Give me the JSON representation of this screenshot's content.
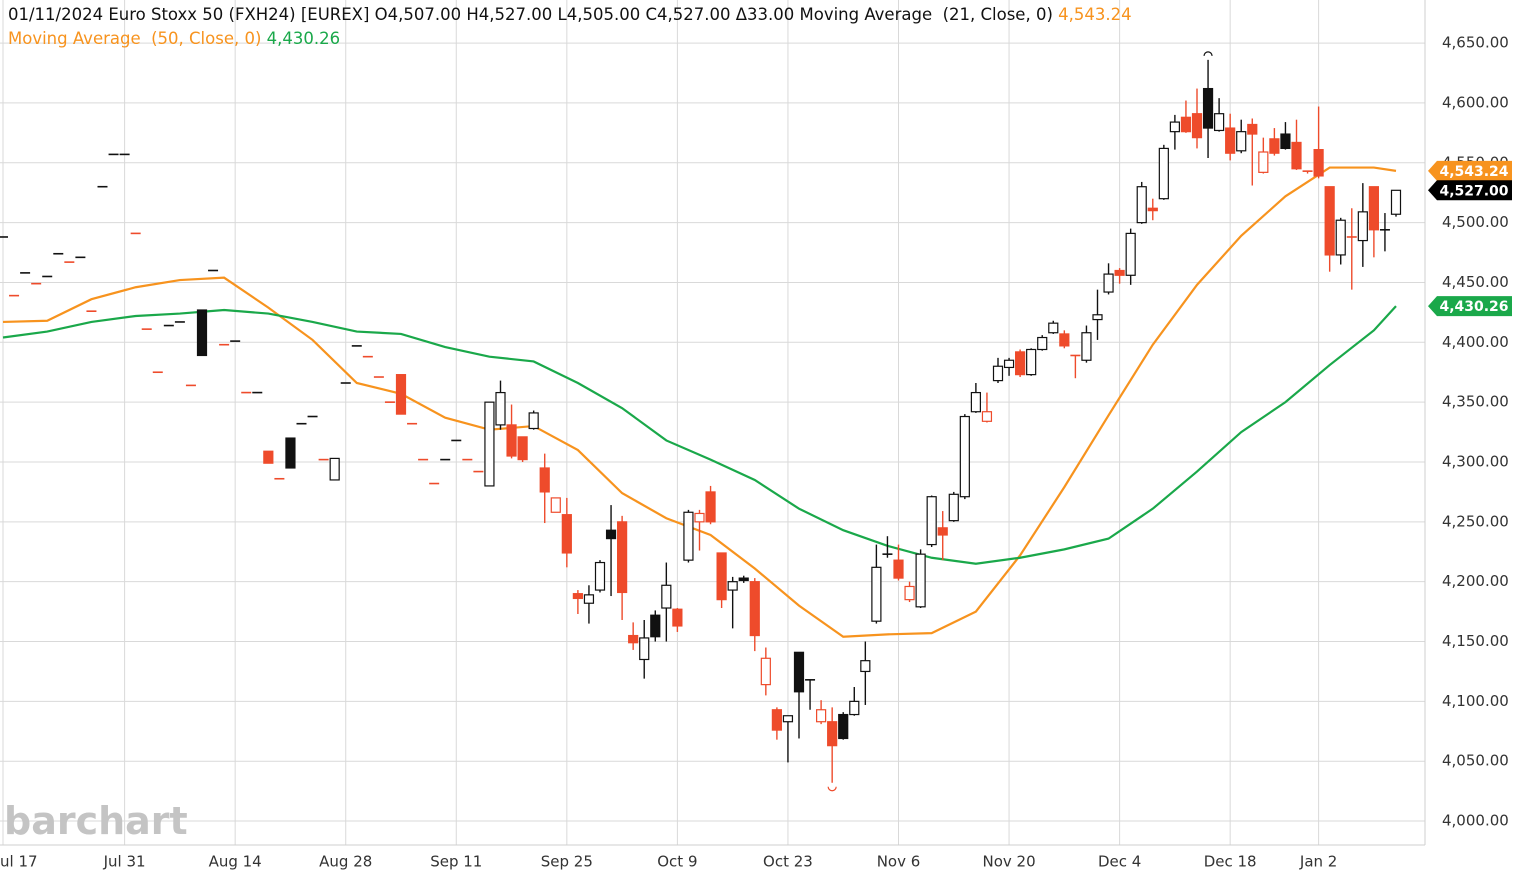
{
  "chart_data": {
    "type": "candlestick",
    "title": "01/11/2024 Euro Stoxx 50 (FXH24) [EUREX]",
    "quote_labels": [
      "O4,507.00",
      "H4,527.00",
      "L4,505.00",
      "C4,527.00",
      "Δ33.00"
    ],
    "last_price_label": "4,527.00",
    "watermark": "barchart",
    "colors": {
      "up": "#111111",
      "down": "#ee4b2b"
    },
    "categories": [
      "ul 17",
      null,
      null,
      null,
      null,
      null,
      null,
      null,
      null,
      null,
      null,
      "Jul 31",
      null,
      null,
      null,
      null,
      null,
      null,
      null,
      null,
      null,
      "Aug 14",
      null,
      null,
      null,
      null,
      null,
      null,
      null,
      null,
      null,
      "Aug 28",
      null,
      null,
      null,
      null,
      null,
      null,
      null,
      null,
      null,
      "Sep 11",
      null,
      null,
      null,
      null,
      null,
      null,
      null,
      null,
      null,
      "Sep 25",
      null,
      null,
      null,
      null,
      null,
      null,
      null,
      null,
      null,
      "Oct 9",
      null,
      null,
      null,
      null,
      null,
      null,
      null,
      null,
      null,
      "Oct 23",
      null,
      null,
      null,
      null,
      null,
      null,
      null,
      null,
      null,
      "Nov 6",
      null,
      null,
      null,
      null,
      null,
      null,
      null,
      null,
      null,
      "Nov 20",
      null,
      null,
      null,
      null,
      null,
      null,
      null,
      null,
      null,
      "Dec 4",
      null,
      null,
      null,
      null,
      null,
      null,
      null,
      null,
      null,
      "Dec 18",
      null,
      null,
      null,
      null,
      null,
      null,
      null,
      "Jan 2",
      null,
      null,
      null,
      null,
      null,
      null,
      null
    ],
    "open": [
      4488,
      4439,
      4458,
      4449,
      4455,
      4474,
      4467,
      4471,
      4426,
      4530,
      4557,
      4557,
      4491,
      4411,
      4375,
      4414,
      4417,
      4364,
      4427,
      4460,
      4398,
      4401,
      4358,
      4358,
      4309,
      4286,
      4320,
      4332,
      4338,
      4302,
      4285,
      4366,
      4397,
      4388,
      4371,
      4350,
      4373,
      4332,
      4302,
      4282,
      4302,
      4318,
      4302,
      4292,
      4280,
      4331,
      4331,
      4321,
      4328,
      4295,
      4258,
      4256,
      4190,
      4182,
      4193,
      4243,
      4250,
      4155,
      4135,
      4172,
      4178,
      4177,
      4218,
      4250,
      4275,
      4224,
      4193,
      4203,
      4200,
      4114,
      4093,
      4083,
      4141,
      4118,
      4083,
      4083,
      4089,
      4089,
      4125,
      4167,
      4223,
      4218,
      4185,
      4179,
      4231,
      4245,
      4251,
      4271,
      4342,
      4334,
      4368,
      4379,
      4392,
      4373,
      4394,
      4408,
      4407,
      4389,
      4385,
      4419,
      4442,
      4460,
      4456,
      4500,
      4512,
      4520,
      4576,
      4588,
      4591,
      4612,
      4577,
      4579,
      4560,
      4582,
      4542,
      4570,
      4574,
      4567,
      4543,
      4561,
      4530,
      4473,
      4488,
      4485,
      4530,
      4494,
      4507
    ],
    "high": [
      4488,
      4439,
      4458,
      4449,
      4455,
      4474,
      4467,
      4471,
      4426,
      4530,
      4557,
      4557,
      4491,
      4411,
      4375,
      4414,
      4417,
      4364,
      4427,
      4460,
      4398,
      4401,
      4358,
      4358,
      4309,
      4286,
      4320,
      4332,
      4338,
      4302,
      4303,
      4366,
      4397,
      4388,
      4371,
      4350,
      4373,
      4332,
      4302,
      4282,
      4302,
      4318,
      4302,
      4292,
      4350,
      4368,
      4348,
      4321,
      4343,
      4307,
      4270,
      4270,
      4193,
      4197,
      4218,
      4264,
      4255,
      4166,
      4168,
      4176,
      4216,
      4178,
      4260,
      4260,
      4280,
      4224,
      4204,
      4205,
      4203,
      4145,
      4095,
      4088,
      4141,
      4118,
      4101,
      4095,
      4091,
      4112,
      4150,
      4231,
      4238,
      4231,
      4200,
      4227,
      4272,
      4259,
      4275,
      4340,
      4366,
      4358,
      4387,
      4387,
      4394,
      4395,
      4406,
      4418,
      4410,
      4389,
      4414,
      4444,
      4466,
      4462,
      4495,
      4534,
      4520,
      4565,
      4590,
      4602,
      4612,
      4636,
      4604,
      4591,
      4586,
      4587,
      4571,
      4579,
      4584,
      4586,
      4543,
      4597,
      4530,
      4504,
      4512,
      4533,
      4530,
      4508,
      4527
    ],
    "low": [
      4488,
      4439,
      4458,
      4449,
      4455,
      4474,
      4467,
      4471,
      4426,
      4530,
      4557,
      4557,
      4491,
      4411,
      4375,
      4414,
      4417,
      4364,
      4389,
      4460,
      4398,
      4401,
      4358,
      4358,
      4299,
      4286,
      4295,
      4332,
      4338,
      4302,
      4285,
      4366,
      4397,
      4388,
      4371,
      4350,
      4340,
      4332,
      4302,
      4282,
      4302,
      4318,
      4302,
      4292,
      4280,
      4327,
      4303,
      4300,
      4327,
      4249,
      4258,
      4212,
      4173,
      4165,
      4191,
      4188,
      4168,
      4143,
      4119,
      4150,
      4150,
      4158,
      4216,
      4226,
      4248,
      4178,
      4161,
      4199,
      4142,
      4105,
      4068,
      4049,
      4069,
      4093,
      4081,
      4032,
      4068,
      4088,
      4097,
      4165,
      4220,
      4201,
      4183,
      4178,
      4229,
      4218,
      4250,
      4269,
      4341,
      4333,
      4366,
      4372,
      4371,
      4372,
      4393,
      4407,
      4395,
      4370,
      4383,
      4402,
      4440,
      4449,
      4448,
      4499,
      4502,
      4519,
      4561,
      4575,
      4562,
      4554,
      4576,
      4552,
      4558,
      4531,
      4541,
      4556,
      4561,
      4544,
      4541,
      4537,
      4459,
      4465,
      4444,
      4463,
      4471,
      4476,
      4505
    ],
    "close": [
      4488,
      4439,
      4458,
      4449,
      4455,
      4474,
      4467,
      4471,
      4426,
      4530,
      4557,
      4557,
      4491,
      4411,
      4375,
      4414,
      4417,
      4364,
      4389,
      4460,
      4398,
      4401,
      4358,
      4358,
      4299,
      4286,
      4295,
      4332,
      4338,
      4302,
      4303,
      4366,
      4397,
      4388,
      4371,
      4350,
      4340,
      4332,
      4302,
      4282,
      4302,
      4318,
      4302,
      4292,
      4350,
      4358,
      4305,
      4302,
      4341,
      4275,
      4270,
      4224,
      4186,
      4189,
      4216,
      4236,
      4191,
      4149,
      4153,
      4154,
      4197,
      4163,
      4258,
      4257,
      4250,
      4185,
      4200,
      4201,
      4155,
      4136,
      4076,
      4088,
      4108,
      4118,
      4093,
      4063,
      4069,
      4100,
      4134,
      4212,
      4223,
      4203,
      4196,
      4223,
      4271,
      4239,
      4273,
      4338,
      4358,
      4342,
      4380,
      4385,
      4373,
      4394,
      4404,
      4416,
      4397,
      4389,
      4408,
      4423,
      4457,
      4456,
      4491,
      4530,
      4510,
      4562,
      4584,
      4576,
      4571,
      4579,
      4591,
      4558,
      4576,
      4574,
      4559,
      4558,
      4562,
      4545,
      4543,
      4539,
      4473,
      4502,
      4488,
      4509,
      4494,
      4494,
      4527
    ],
    "overlays": [
      {
        "name": "Moving Average  (21, Close, 0)",
        "color": "#f7931e",
        "value_label": "4,543.24",
        "x": [
          0,
          4,
          8,
          12,
          16,
          20,
          24,
          28,
          32,
          36,
          40,
          44,
          48,
          52,
          56,
          60,
          64,
          68,
          72,
          76,
          80,
          84,
          88,
          92,
          96,
          100,
          104,
          108,
          112,
          116,
          120,
          124,
          126
        ],
        "values": [
          4417,
          4418,
          4436,
          4446,
          4452,
          4454,
          4429,
          4402,
          4366,
          4357,
          4337,
          4327,
          4330,
          4310,
          4274,
          4253,
          4239,
          4211,
          4180,
          4154,
          4156,
          4157,
          4175,
          4222,
          4279,
          4339,
          4398,
          4448,
          4489,
          4522,
          4546,
          4546,
          4543.24
        ]
      },
      {
        "name": "Moving Average  (50, Close, 0)",
        "color": "#1aa84a",
        "value_label": "4,430.26",
        "x": [
          0,
          4,
          8,
          12,
          16,
          20,
          24,
          28,
          32,
          36,
          40,
          44,
          48,
          52,
          56,
          60,
          64,
          68,
          72,
          76,
          80,
          84,
          88,
          92,
          96,
          100,
          104,
          108,
          112,
          116,
          120,
          124,
          126
        ],
        "values": [
          4404,
          4409,
          4417,
          4422,
          4424,
          4427,
          4424,
          4417,
          4409,
          4407,
          4396,
          4388,
          4384,
          4366,
          4345,
          4318,
          4302,
          4285,
          4261,
          4243,
          4230,
          4220,
          4215,
          4220,
          4227,
          4236,
          4261,
          4292,
          4325,
          4350,
          4381,
          4410,
          4430.26
        ]
      }
    ],
    "ylim": [
      3980,
      4686
    ],
    "yticks": [
      {
        "value": 4000,
        "label": "4,000.00"
      },
      {
        "value": 4050,
        "label": "4,050.00"
      },
      {
        "value": 4100,
        "label": "4,100.00"
      },
      {
        "value": 4150,
        "label": "4,150.00"
      },
      {
        "value": 4200,
        "label": "4,200.00"
      },
      {
        "value": 4250,
        "label": "4,250.00"
      },
      {
        "value": 4300,
        "label": "4,300.00"
      },
      {
        "value": 4350,
        "label": "4,350.00"
      },
      {
        "value": 4400,
        "label": "4,400.00"
      },
      {
        "value": 4450,
        "label": "4,450.00"
      },
      {
        "value": 4500,
        "label": "4,500.00"
      },
      {
        "value": 4550,
        "label": "4,550.00"
      },
      {
        "value": 4600,
        "label": "4,600.00"
      },
      {
        "value": 4650,
        "label": "4,650.00"
      }
    ],
    "grid": true
  }
}
